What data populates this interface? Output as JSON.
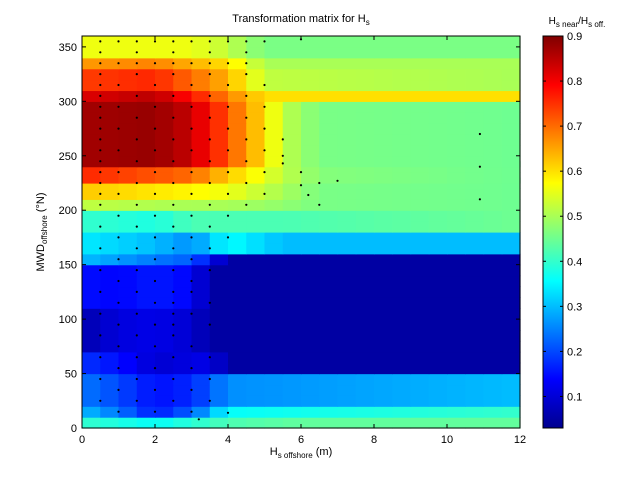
{
  "chart_data": {
    "type": "heatmap",
    "title": {
      "main": "Transformation matrix for H",
      "sub": "s"
    },
    "xlabel": {
      "main": "H",
      "sub": "s offshore",
      "unit": " (m)"
    },
    "ylabel": {
      "main": "MWD",
      "sub": "offshore",
      "unit": " (°N)"
    },
    "colorbar_label": {
      "a": "H",
      "a_sub": "s near",
      "slash": "/H",
      "b_sub": "s off."
    },
    "xlim": [
      0,
      12
    ],
    "ylim": [
      0,
      360
    ],
    "x_ticks": [
      "0",
      "2",
      "4",
      "6",
      "8",
      "10",
      "12"
    ],
    "y_ticks": [
      "0",
      "50",
      "100",
      "150",
      "200",
      "250",
      "300",
      "350"
    ],
    "colorbar_range": [
      0.03,
      0.9
    ],
    "colorbar_ticks": [
      "0.1",
      "0.2",
      "0.3",
      "0.4",
      "0.5",
      "0.6",
      "0.7",
      "0.8",
      "0.9"
    ],
    "colormap": "jet",
    "cell_width_x": 0.5,
    "cell_height_y": 10,
    "rows": [
      {
        "y": [
          0,
          10
        ],
        "x": [
          0,
          2,
          4,
          6,
          12
        ],
        "v": [
          0.4,
          0.36,
          0.42,
          0.44,
          0.44
        ]
      },
      {
        "y": [
          10,
          20
        ],
        "x": [
          0,
          1,
          2,
          3,
          4,
          12
        ],
        "v": [
          0.3,
          0.24,
          0.16,
          0.22,
          0.36,
          0.4
        ]
      },
      {
        "y": [
          20,
          50
        ],
        "x": [
          0,
          1,
          2,
          3,
          4,
          12
        ],
        "v": [
          0.24,
          0.2,
          0.15,
          0.17,
          0.26,
          0.3
        ]
      },
      {
        "y": [
          50,
          70
        ],
        "x": [
          0,
          1,
          2,
          3.5,
          4,
          12
        ],
        "v": [
          0.18,
          0.15,
          0.1,
          0.12,
          0.06,
          0.06
        ]
      },
      {
        "y": [
          70,
          110
        ],
        "x": [
          0,
          1,
          2,
          3,
          3.5,
          12
        ],
        "v": [
          0.07,
          0.11,
          0.12,
          0.1,
          0.06,
          0.06
        ]
      },
      {
        "y": [
          110,
          150
        ],
        "x": [
          0,
          1,
          2,
          3,
          3.5,
          12
        ],
        "v": [
          0.15,
          0.14,
          0.16,
          0.14,
          0.06,
          0.06
        ]
      },
      {
        "y": [
          150,
          160
        ],
        "x": [
          0,
          2,
          3,
          4,
          12
        ],
        "v": [
          0.3,
          0.24,
          0.22,
          0.06,
          0.06
        ]
      },
      {
        "y": [
          160,
          180
        ],
        "x": [
          0,
          2,
          3,
          4,
          5.5,
          12
        ],
        "v": [
          0.34,
          0.3,
          0.26,
          0.36,
          0.3,
          0.3
        ]
      },
      {
        "y": [
          180,
          200
        ],
        "x": [
          0,
          2,
          3,
          4,
          5.5,
          12
        ],
        "v": [
          0.4,
          0.38,
          0.42,
          0.42,
          0.42,
          0.45
        ]
      },
      {
        "y": [
          200,
          210
        ],
        "x": [
          0,
          3,
          4,
          5.5,
          6.5,
          12
        ],
        "v": [
          0.52,
          0.5,
          0.5,
          0.48,
          0.46,
          0.45
        ]
      },
      {
        "y": [
          210,
          225
        ],
        "x": [
          0,
          3,
          4,
          5.5,
          6.5,
          12
        ],
        "v": [
          0.62,
          0.58,
          0.56,
          0.5,
          0.46,
          0.45
        ]
      },
      {
        "y": [
          225,
          240
        ],
        "x": [
          0,
          3,
          4,
          5.5,
          6.5,
          12
        ],
        "v": [
          0.76,
          0.7,
          0.62,
          0.52,
          0.47,
          0.45
        ]
      },
      {
        "y": [
          240,
          300
        ],
        "x": [
          0,
          2,
          3,
          4,
          5,
          5.5,
          6.5,
          12
        ],
        "v": [
          0.87,
          0.88,
          0.84,
          0.72,
          0.6,
          0.52,
          0.46,
          0.45
        ]
      },
      {
        "y": [
          300,
          310
        ],
        "x": [
          0,
          2,
          3,
          4,
          5,
          12
        ],
        "v": [
          0.82,
          0.85,
          0.78,
          0.68,
          0.6,
          0.6
        ]
      },
      {
        "y": [
          310,
          330
        ],
        "x": [
          0,
          2,
          3,
          4,
          5,
          12
        ],
        "v": [
          0.74,
          0.76,
          0.7,
          0.64,
          0.52,
          0.5
        ]
      },
      {
        "y": [
          330,
          340
        ],
        "x": [
          0,
          2,
          3,
          4,
          5,
          12
        ],
        "v": [
          0.66,
          0.68,
          0.64,
          0.6,
          0.5,
          0.5
        ]
      },
      {
        "y": [
          340,
          360
        ],
        "x": [
          0,
          2,
          3,
          4,
          5,
          12
        ],
        "v": [
          0.56,
          0.56,
          0.56,
          0.52,
          0.46,
          0.46
        ]
      }
    ],
    "observations": [
      [
        0.5,
        355
      ],
      [
        1.0,
        355
      ],
      [
        1.5,
        355
      ],
      [
        2.0,
        355
      ],
      [
        2.5,
        355
      ],
      [
        3.0,
        355
      ],
      [
        3.5,
        355
      ],
      [
        4.0,
        355
      ],
      [
        4.5,
        355
      ],
      [
        5.0,
        355
      ],
      [
        6.0,
        357
      ],
      [
        0.5,
        345
      ],
      [
        1.5,
        345
      ],
      [
        2.5,
        345
      ],
      [
        3.5,
        345
      ],
      [
        4.5,
        345
      ],
      [
        0.5,
        335
      ],
      [
        1.0,
        335
      ],
      [
        1.5,
        335
      ],
      [
        2.0,
        335
      ],
      [
        2.5,
        335
      ],
      [
        3.0,
        335
      ],
      [
        3.5,
        335
      ],
      [
        4.0,
        335
      ],
      [
        4.5,
        335
      ],
      [
        0.5,
        325
      ],
      [
        1.5,
        325
      ],
      [
        2.5,
        325
      ],
      [
        3.5,
        325
      ],
      [
        4.5,
        325
      ],
      [
        0.5,
        315
      ],
      [
        1.0,
        315
      ],
      [
        2.0,
        315
      ],
      [
        3.0,
        315
      ],
      [
        4.0,
        315
      ],
      [
        5.0,
        315
      ],
      [
        0.5,
        305
      ],
      [
        1.5,
        305
      ],
      [
        2.5,
        305
      ],
      [
        3.5,
        305
      ],
      [
        4.5,
        305
      ],
      [
        0.5,
        295
      ],
      [
        1.0,
        295
      ],
      [
        2.0,
        295
      ],
      [
        3.0,
        295
      ],
      [
        4.0,
        295
      ],
      [
        5.0,
        295
      ],
      [
        0.5,
        285
      ],
      [
        1.5,
        285
      ],
      [
        2.5,
        285
      ],
      [
        3.5,
        285
      ],
      [
        4.5,
        285
      ],
      [
        0.5,
        275
      ],
      [
        1.0,
        275
      ],
      [
        2.0,
        275
      ],
      [
        3.0,
        275
      ],
      [
        4.0,
        275
      ],
      [
        5.0,
        275
      ],
      [
        0.5,
        265
      ],
      [
        1.5,
        265
      ],
      [
        2.5,
        265
      ],
      [
        3.5,
        265
      ],
      [
        4.5,
        265
      ],
      [
        5.5,
        265
      ],
      [
        0.5,
        255
      ],
      [
        1.0,
        255
      ],
      [
        2.0,
        255
      ],
      [
        3.0,
        255
      ],
      [
        4.0,
        255
      ],
      [
        5.0,
        255
      ],
      [
        5.5,
        250
      ],
      [
        0.5,
        245
      ],
      [
        1.5,
        245
      ],
      [
        2.5,
        245
      ],
      [
        3.5,
        245
      ],
      [
        4.5,
        245
      ],
      [
        5.5,
        243
      ],
      [
        0.5,
        235
      ],
      [
        1.0,
        235
      ],
      [
        2.0,
        235
      ],
      [
        3.0,
        235
      ],
      [
        4.0,
        235
      ],
      [
        5.0,
        235
      ],
      [
        6.0,
        235
      ],
      [
        0.5,
        225
      ],
      [
        1.5,
        225
      ],
      [
        2.5,
        225
      ],
      [
        3.5,
        225
      ],
      [
        4.5,
        225
      ],
      [
        6.0,
        223
      ],
      [
        6.5,
        225
      ],
      [
        7.0,
        227
      ],
      [
        0.5,
        215
      ],
      [
        1.0,
        215
      ],
      [
        2.0,
        215
      ],
      [
        3.0,
        215
      ],
      [
        4.0,
        215
      ],
      [
        5.0,
        215
      ],
      [
        6.2,
        214
      ],
      [
        0.5,
        205
      ],
      [
        1.5,
        205
      ],
      [
        2.5,
        205
      ],
      [
        3.5,
        205
      ],
      [
        4.5,
        205
      ],
      [
        6.5,
        205
      ],
      [
        1.0,
        195
      ],
      [
        2.0,
        195
      ],
      [
        3.0,
        195
      ],
      [
        4.0,
        195
      ],
      [
        0.5,
        185
      ],
      [
        1.5,
        185
      ],
      [
        2.5,
        185
      ],
      [
        3.5,
        185
      ],
      [
        1.0,
        175
      ],
      [
        2.0,
        175
      ],
      [
        3.0,
        175
      ],
      [
        4.0,
        175
      ],
      [
        0.5,
        165
      ],
      [
        1.5,
        165
      ],
      [
        2.5,
        165
      ],
      [
        3.5,
        165
      ],
      [
        1.0,
        155
      ],
      [
        2.0,
        155
      ],
      [
        3.0,
        155
      ],
      [
        0.5,
        145
      ],
      [
        1.5,
        145
      ],
      [
        2.5,
        145
      ],
      [
        3.5,
        145
      ],
      [
        1.0,
        135
      ],
      [
        2.0,
        135
      ],
      [
        3.0,
        135
      ],
      [
        0.5,
        125
      ],
      [
        1.5,
        125
      ],
      [
        2.5,
        125
      ],
      [
        3.0,
        125
      ],
      [
        1.0,
        115
      ],
      [
        2.0,
        115
      ],
      [
        2.5,
        115
      ],
      [
        3.5,
        115
      ],
      [
        0.5,
        105
      ],
      [
        1.5,
        105
      ],
      [
        2.5,
        105
      ],
      [
        3.0,
        105
      ],
      [
        1.0,
        95
      ],
      [
        2.0,
        95
      ],
      [
        2.5,
        95
      ],
      [
        3.5,
        95
      ],
      [
        0.5,
        85
      ],
      [
        1.5,
        85
      ],
      [
        2.5,
        85
      ],
      [
        1.0,
        75
      ],
      [
        2.0,
        75
      ],
      [
        3.0,
        75
      ],
      [
        0.5,
        65
      ],
      [
        1.5,
        65
      ],
      [
        2.5,
        65
      ],
      [
        3.5,
        65
      ],
      [
        1.0,
        55
      ],
      [
        2.0,
        55
      ],
      [
        3.0,
        55
      ],
      [
        0.5,
        45
      ],
      [
        1.5,
        45
      ],
      [
        2.5,
        45
      ],
      [
        3.5,
        45
      ],
      [
        1.0,
        35
      ],
      [
        2.0,
        35
      ],
      [
        3.0,
        35
      ],
      [
        0.5,
        25
      ],
      [
        1.5,
        25
      ],
      [
        2.5,
        25
      ],
      [
        3.5,
        25
      ],
      [
        1.0,
        15
      ],
      [
        2.0,
        15
      ],
      [
        3.0,
        15
      ],
      [
        4.0,
        14
      ],
      [
        3.2,
        8
      ]
    ],
    "tall_column_points": [
      [
        10.9,
        270
      ],
      [
        10.9,
        240
      ],
      [
        10.9,
        210
      ]
    ],
    "grid": false,
    "legend": "colorbar-right"
  }
}
